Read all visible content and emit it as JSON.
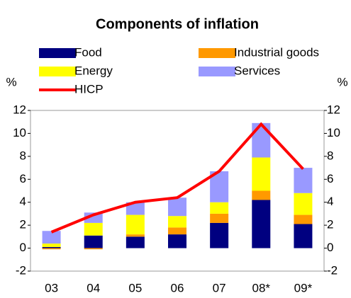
{
  "chart_data": {
    "type": "bar",
    "title": "Components of inflation",
    "ylabel": "%",
    "y2label": "%",
    "categories": [
      "03",
      "04",
      "05",
      "06",
      "07",
      "08*",
      "09*"
    ],
    "series": [
      {
        "name": "Food",
        "color": "#000080",
        "values": [
          0.1,
          1.1,
          1.0,
          1.2,
          2.2,
          4.2,
          2.1
        ]
      },
      {
        "name": "Industrial goods",
        "color": "#ff9900",
        "values": [
          -0.1,
          -0.1,
          0.2,
          0.6,
          0.8,
          0.8,
          0.8
        ]
      },
      {
        "name": "Energy",
        "color": "#ffff00",
        "values": [
          0.3,
          1.1,
          1.7,
          1.0,
          1.0,
          2.9,
          1.9
        ]
      },
      {
        "name": "Services",
        "color": "#9999ff",
        "values": [
          1.1,
          0.9,
          1.1,
          1.6,
          2.7,
          3.0,
          2.2
        ]
      },
      {
        "name": "HICP",
        "color": "#ff0000",
        "type": "line",
        "values": [
          1.4,
          2.9,
          4.0,
          4.4,
          6.7,
          10.8,
          6.9
        ]
      }
    ],
    "ylim": [
      -2,
      12
    ],
    "yticks": [
      -2,
      0,
      2,
      4,
      6,
      8,
      10,
      12
    ],
    "y2lim": [
      -2,
      12
    ],
    "y2ticks": [
      -2,
      0,
      2,
      4,
      6,
      8,
      10,
      12
    ],
    "stacked": true,
    "grid": false
  }
}
